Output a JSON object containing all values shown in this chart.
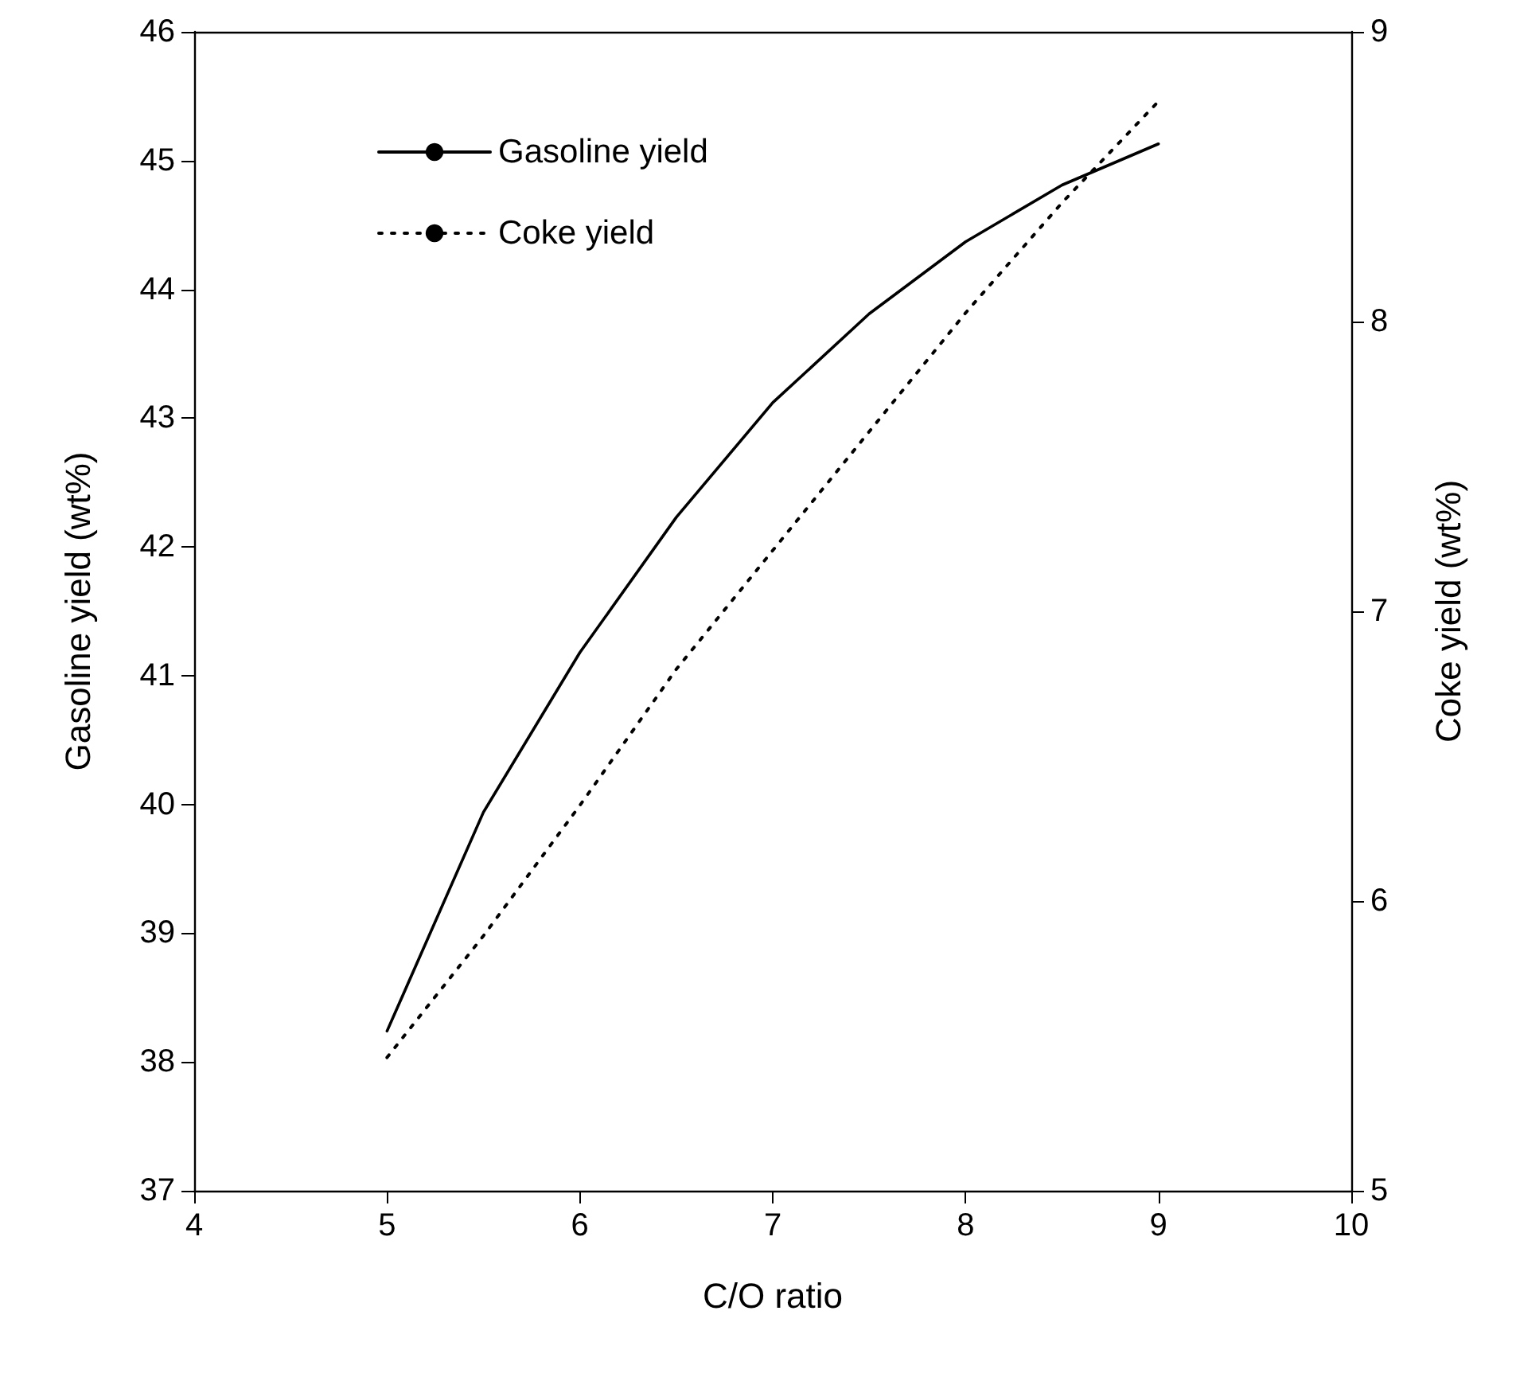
{
  "chart_data": {
    "type": "line",
    "xlabel": "C/O ratio",
    "ylabel": "Gasoline yield (wt%)",
    "y2label": "Coke yield (wt%)",
    "x": [
      5,
      5.5,
      6,
      6.5,
      7,
      7.5,
      8,
      8.5,
      9
    ],
    "series": [
      {
        "name": "Gasoline yield",
        "color": "#000000",
        "line_style": "solid",
        "values": [
          38.24,
          39.94,
          41.18,
          42.23,
          43.12,
          43.81,
          44.37,
          44.81,
          45.13
        ]
      },
      {
        "name": "Coke yield",
        "color": "#000000",
        "line_style": "dotted",
        "axis": "y2",
        "values": [
          5.46,
          5.88,
          6.33,
          6.8,
          7.21,
          7.62,
          8.03,
          8.41,
          8.76
        ]
      }
    ],
    "xlim": [
      4,
      10
    ],
    "xticks": [
      4,
      5,
      6,
      7,
      8,
      9,
      10
    ],
    "ylim": [
      37,
      46
    ],
    "yticks": [
      37,
      38,
      39,
      40,
      41,
      42,
      43,
      44,
      45,
      46
    ],
    "y2lim": [
      5,
      9
    ],
    "y2ticks": [
      5,
      6,
      7,
      8,
      9
    ],
    "grid": false,
    "legend": "top left",
    "marker": "none"
  }
}
